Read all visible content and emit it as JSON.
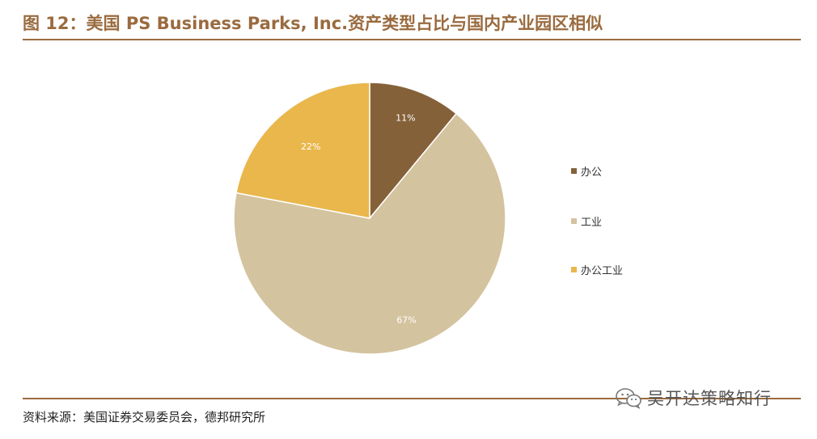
{
  "header": {
    "title": "图 12：美国 PS Business Parks, Inc.资产类型占比与国内产业园区相似"
  },
  "chart_data": {
    "type": "pie",
    "categories": [
      "办公",
      "工业",
      "办公工业"
    ],
    "values": [
      11,
      67,
      22
    ],
    "data_labels": [
      "11%",
      "67%",
      "22%"
    ],
    "colors": [
      "#85613a",
      "#d4c39f",
      "#e9b74c"
    ],
    "legend_position": "right",
    "start_angle": "12 o'clock, clockwise"
  },
  "footer": {
    "source": "资料来源：美国证券交易委员会，德邦研究所"
  },
  "watermark": {
    "text": "吴开达策略知行",
    "icon": "wechat-icon"
  }
}
